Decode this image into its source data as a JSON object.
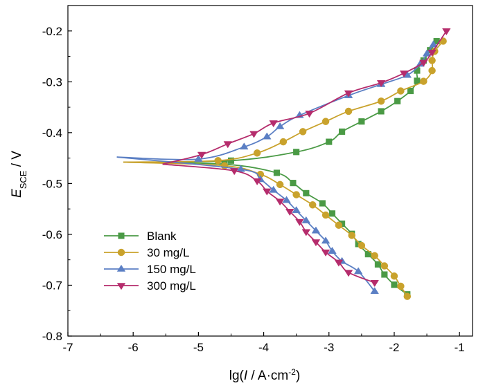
{
  "chart_data": {
    "type": "line",
    "title": "",
    "xlabel": {
      "prefix": "lg(",
      "italic": "I",
      "suffix": " / A·cm",
      "sup": "-2",
      "close": ")"
    },
    "ylabel": {
      "main": "E",
      "sub": "SCE",
      "suffix": " / V"
    },
    "xlim": [
      -7,
      -0.8
    ],
    "ylim": [
      -0.8,
      -0.15
    ],
    "xticks": [
      -7,
      -6,
      -5,
      -4,
      -3,
      -2,
      -1
    ],
    "xtick_labels": [
      "-7",
      "-6",
      "-5",
      "-4",
      "-3",
      "-2",
      "-1"
    ],
    "yticks": [
      -0.8,
      -0.7,
      -0.6,
      -0.5,
      -0.4,
      -0.3,
      -0.2
    ],
    "ytick_labels": [
      "-0.8",
      "-0.7",
      "-0.6",
      "-0.5",
      "-0.4",
      "-0.3",
      "-0.2"
    ],
    "grid": false,
    "legend_position": "bottom-left",
    "series": [
      {
        "name": "Blank",
        "color": "#4a9a45",
        "marker": "square",
        "anodic": [
          [
            -6.15,
            -0.458
          ],
          [
            -4.5,
            -0.455
          ],
          [
            -3.5,
            -0.438
          ],
          [
            -3.0,
            -0.418
          ],
          [
            -2.8,
            -0.398
          ],
          [
            -2.5,
            -0.378
          ],
          [
            -2.2,
            -0.358
          ],
          [
            -1.95,
            -0.338
          ],
          [
            -1.75,
            -0.318
          ],
          [
            -1.65,
            -0.298
          ],
          [
            -1.65,
            -0.278
          ],
          [
            -1.55,
            -0.258
          ],
          [
            -1.45,
            -0.238
          ],
          [
            -1.35,
            -0.22
          ]
        ],
        "cathodic": [
          [
            -6.15,
            -0.458
          ],
          [
            -4.6,
            -0.462
          ],
          [
            -3.8,
            -0.479
          ],
          [
            -3.55,
            -0.499
          ],
          [
            -3.35,
            -0.519
          ],
          [
            -3.1,
            -0.539
          ],
          [
            -2.95,
            -0.559
          ],
          [
            -2.8,
            -0.579
          ],
          [
            -2.65,
            -0.599
          ],
          [
            -2.55,
            -0.619
          ],
          [
            -2.4,
            -0.639
          ],
          [
            -2.25,
            -0.659
          ],
          [
            -2.15,
            -0.679
          ],
          [
            -2.0,
            -0.699
          ],
          [
            -1.8,
            -0.718
          ]
        ]
      },
      {
        "name": "30 mg/L",
        "color": "#c9a22c",
        "marker": "circle",
        "anodic": [
          [
            -6.15,
            -0.458
          ],
          [
            -4.7,
            -0.455
          ],
          [
            -4.1,
            -0.44
          ],
          [
            -3.7,
            -0.418
          ],
          [
            -3.4,
            -0.398
          ],
          [
            -3.05,
            -0.378
          ],
          [
            -2.7,
            -0.358
          ],
          [
            -2.2,
            -0.338
          ],
          [
            -1.9,
            -0.318
          ],
          [
            -1.55,
            -0.299
          ],
          [
            -1.42,
            -0.278
          ],
          [
            -1.42,
            -0.258
          ],
          [
            -1.38,
            -0.24
          ],
          [
            -1.25,
            -0.22
          ]
        ],
        "cathodic": [
          [
            -6.15,
            -0.458
          ],
          [
            -4.6,
            -0.465
          ],
          [
            -4.05,
            -0.482
          ],
          [
            -3.75,
            -0.502
          ],
          [
            -3.5,
            -0.522
          ],
          [
            -3.25,
            -0.542
          ],
          [
            -3.05,
            -0.562
          ],
          [
            -2.85,
            -0.582
          ],
          [
            -2.65,
            -0.602
          ],
          [
            -2.5,
            -0.622
          ],
          [
            -2.3,
            -0.642
          ],
          [
            -2.15,
            -0.662
          ],
          [
            -2.0,
            -0.682
          ],
          [
            -1.9,
            -0.702
          ],
          [
            -1.8,
            -0.722
          ]
        ]
      },
      {
        "name": "150 mg/L",
        "color": "#5b7fc4",
        "marker": "triangle-up",
        "anodic": [
          [
            -6.25,
            -0.448
          ],
          [
            -5.0,
            -0.452
          ],
          [
            -4.3,
            -0.428
          ],
          [
            -3.95,
            -0.408
          ],
          [
            -3.75,
            -0.388
          ],
          [
            -3.45,
            -0.366
          ],
          [
            -2.7,
            -0.327
          ],
          [
            -2.2,
            -0.305
          ],
          [
            -1.8,
            -0.287
          ],
          [
            -1.6,
            -0.265
          ],
          [
            -1.5,
            -0.245
          ],
          [
            -1.4,
            -0.227
          ]
        ],
        "cathodic": [
          [
            -6.25,
            -0.448
          ],
          [
            -4.35,
            -0.472
          ],
          [
            -4.05,
            -0.492
          ],
          [
            -3.85,
            -0.513
          ],
          [
            -3.65,
            -0.533
          ],
          [
            -3.5,
            -0.553
          ],
          [
            -3.35,
            -0.573
          ],
          [
            -3.2,
            -0.593
          ],
          [
            -3.05,
            -0.613
          ],
          [
            -2.95,
            -0.633
          ],
          [
            -2.8,
            -0.653
          ],
          [
            -2.55,
            -0.673
          ],
          [
            -2.3,
            -0.712
          ]
        ]
      },
      {
        "name": "300 mg/L",
        "color": "#b52c6c",
        "marker": "triangle-down",
        "anodic": [
          [
            -5.55,
            -0.462
          ],
          [
            -4.95,
            -0.443
          ],
          [
            -4.55,
            -0.422
          ],
          [
            -4.15,
            -0.402
          ],
          [
            -3.85,
            -0.381
          ],
          [
            -3.3,
            -0.362
          ],
          [
            -2.7,
            -0.322
          ],
          [
            -2.2,
            -0.302
          ],
          [
            -1.85,
            -0.283
          ],
          [
            -1.55,
            -0.262
          ],
          [
            -1.42,
            -0.242
          ],
          [
            -1.2,
            -0.2
          ]
        ],
        "cathodic": [
          [
            -5.55,
            -0.462
          ],
          [
            -4.45,
            -0.475
          ],
          [
            -4.1,
            -0.495
          ],
          [
            -3.95,
            -0.515
          ],
          [
            -3.75,
            -0.535
          ],
          [
            -3.6,
            -0.555
          ],
          [
            -3.45,
            -0.575
          ],
          [
            -3.35,
            -0.595
          ],
          [
            -3.2,
            -0.615
          ],
          [
            -3.05,
            -0.635
          ],
          [
            -2.85,
            -0.655
          ],
          [
            -2.7,
            -0.675
          ],
          [
            -2.3,
            -0.695
          ]
        ]
      }
    ]
  }
}
